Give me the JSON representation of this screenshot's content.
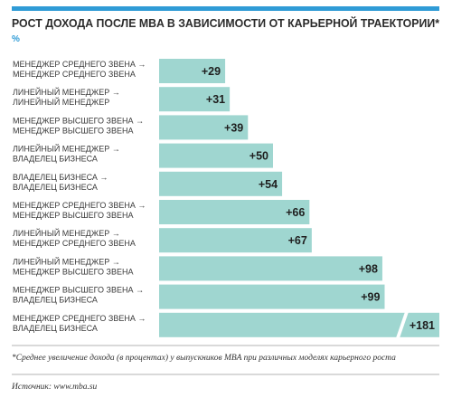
{
  "chart_data": {
    "type": "bar",
    "orientation": "horizontal",
    "title": "РОСТ ДОХОДА ПОСЛЕ MBA В ЗАВИСИМОСТИ ОТ КАРЬЕРНОЙ ТРАЕКТОРИИ*",
    "subtitle": "%",
    "categories": [
      "МЕНЕДЖЕР СРЕДНЕГО ЗВЕНА →\nМЕНЕДЖЕР СРЕДНЕГО ЗВЕНА",
      "ЛИНЕЙНЫЙ МЕНЕДЖЕР →\nЛИНЕЙНЫЙ МЕНЕДЖЕР",
      "МЕНЕДЖЕР ВЫСШЕГО ЗВЕНА →\nМЕНЕДЖЕР ВЫСШЕГО ЗВЕНА",
      "ЛИНЕЙНЫЙ МЕНЕДЖЕР →\nВЛАДЕЛЕЦ БИЗНЕСА",
      "ВЛАДЕЛЕЦ БИЗНЕСА →\nВЛАДЕЛЕЦ БИЗНЕСА",
      "МЕНЕДЖЕР СРЕДНЕГО ЗВЕНА →\nМЕНЕДЖЕР ВЫСШЕГО ЗВЕНА",
      "ЛИНЕЙНЫЙ МЕНЕДЖЕР →\nМЕНЕДЖЕР СРЕДНЕГО ЗВЕНА",
      "ЛИНЕЙНЫЙ МЕНЕДЖЕР →\nМЕНЕДЖЕР ВЫСШЕГО ЗВЕНА",
      "МЕНЕДЖЕР ВЫСШЕГО ЗВЕНА →\nВЛАДЕЛЕЦ БИЗНЕСА",
      "МЕНЕДЖЕР СРЕДНЕГО ЗВЕНА →\nВЛАДЕЛЕЦ БИЗНЕСА"
    ],
    "values": [
      29,
      31,
      39,
      50,
      54,
      66,
      67,
      98,
      99,
      181
    ],
    "value_labels": [
      "+29",
      "+31",
      "+39",
      "+50",
      "+54",
      "+66",
      "+67",
      "+98",
      "+99",
      "+181"
    ],
    "color": "#9fd6d0",
    "note": "*Среднее увеличение дохода (в процентах) у выпускников MBA при различных моделях карьерного роста",
    "source": "Источник: www.mba.su"
  }
}
